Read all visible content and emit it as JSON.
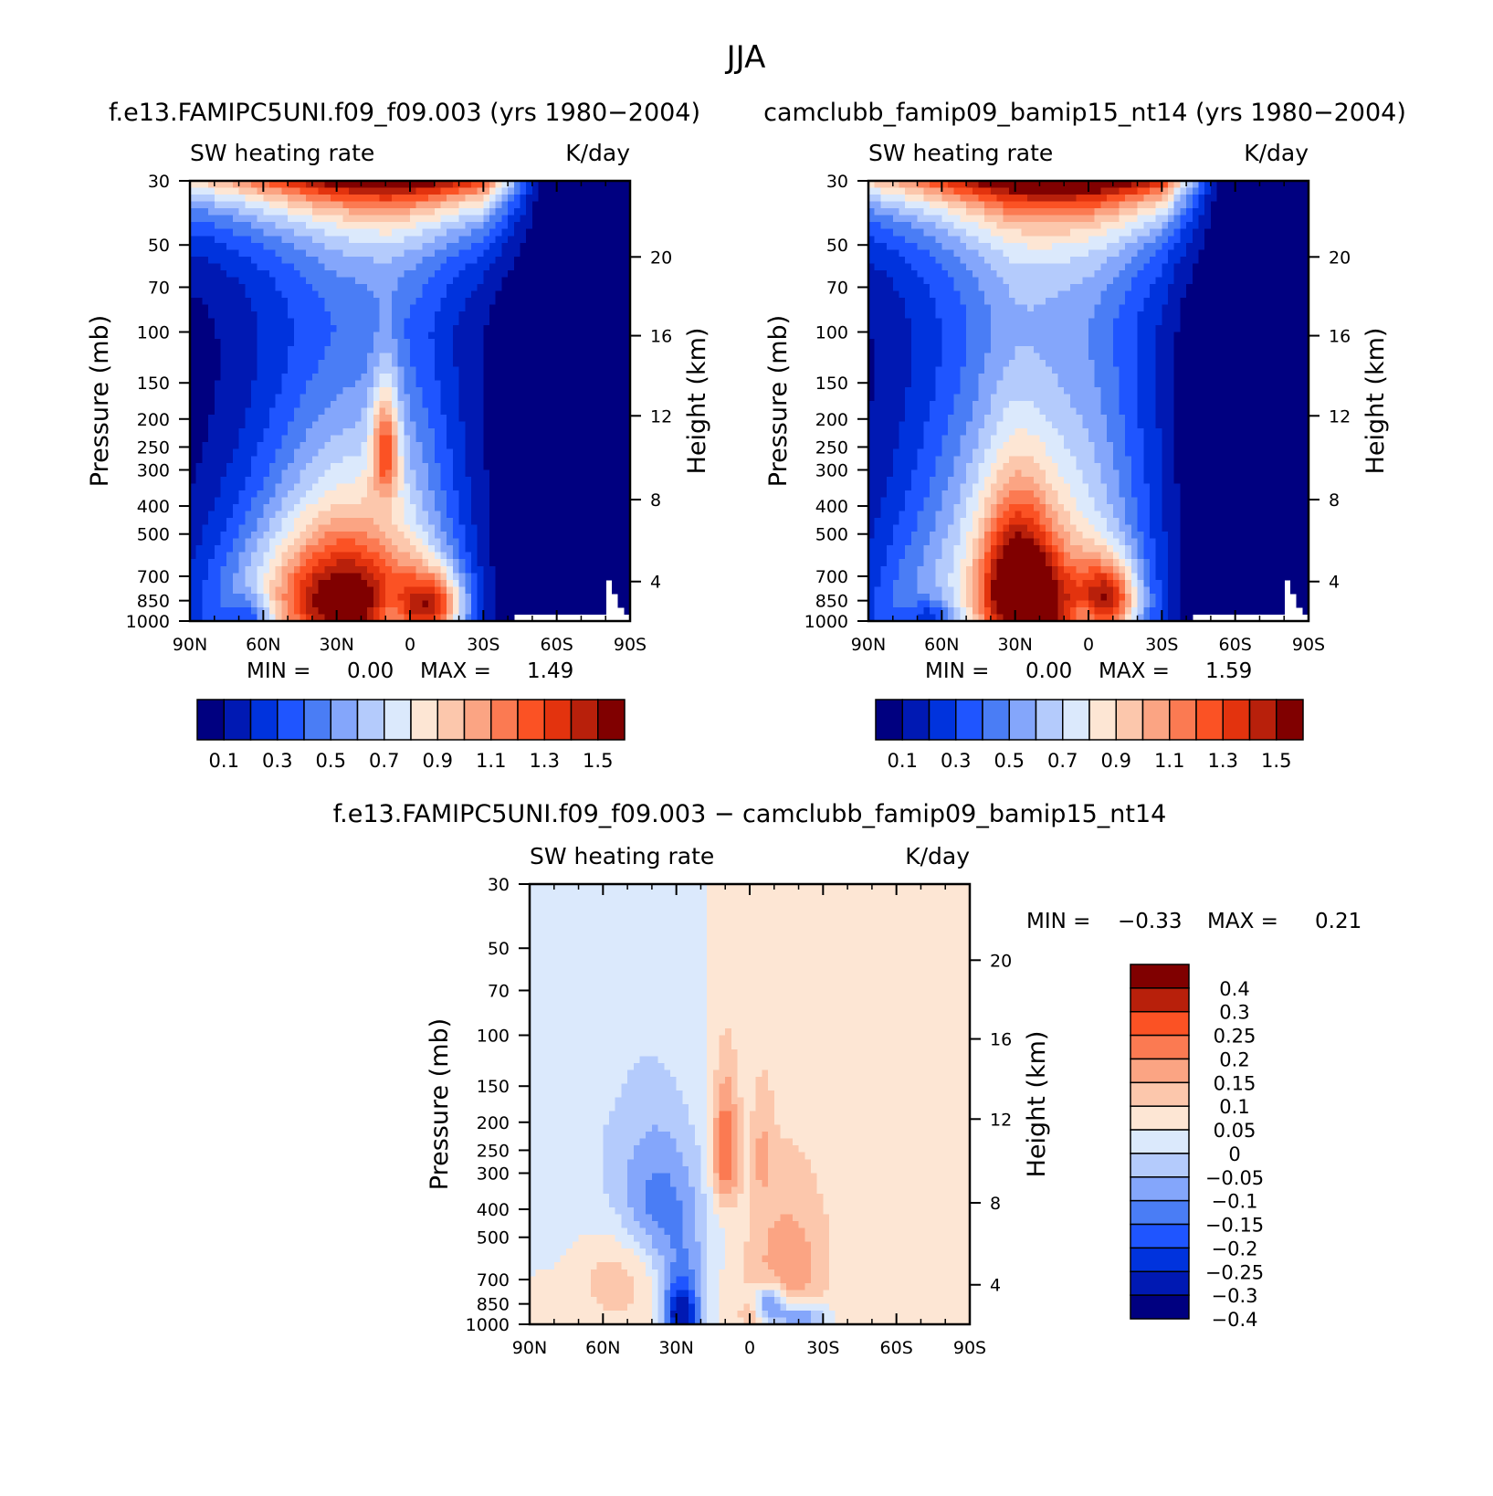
{
  "figure": {
    "title": "JJA"
  },
  "palettes": {
    "abs": [
      "#000080",
      "#0019b3",
      "#0033dd",
      "#1f55ff",
      "#4a7df5",
      "#84a6fb",
      "#b4cbfc",
      "#dbe9fc",
      "#fde6d4",
      "#fcc7ac",
      "#fba483",
      "#fb7a52",
      "#fb5224",
      "#e3330e",
      "#b8200b",
      "#800000"
    ],
    "diff": [
      "#000080",
      "#0019b3",
      "#0033dd",
      "#1f55ff",
      "#4a7df5",
      "#84a6fb",
      "#b4cbfc",
      "#dbe9fc",
      "#fde6d4",
      "#fcc7ac",
      "#fba483",
      "#fb7a52",
      "#fb5224",
      "#b8200b",
      "#800000"
    ]
  },
  "chart_data": [
    {
      "id": "panel1",
      "type": "heatmap",
      "title": "f.e13.FAMIPC5UNI.f09_f09.003 (yrs 1980−2004)",
      "left_title": "SW heating rate",
      "right_title": "K/day",
      "ylabel": "Pressure (mb)",
      "ylabel_right": "Height (km)",
      "x_ticks": [
        "90N",
        "60N",
        "30N",
        "0",
        "30S",
        "60S",
        "90S"
      ],
      "x_range": [
        90,
        -90
      ],
      "y_ticks": [
        "30",
        "50",
        "70",
        "100",
        "150",
        "200",
        "250",
        "300",
        "400",
        "500",
        "700",
        "850",
        "1000"
      ],
      "y_range_mb": [
        30,
        1000
      ],
      "y_right_ticks": [
        "20",
        "16",
        "12",
        "8",
        "4"
      ],
      "min_label": "MIN =",
      "min_value": "0.00",
      "max_label": "MAX =",
      "max_value": "1.49",
      "colorbar_labels": [
        "0.1",
        "0.3",
        "0.5",
        "0.7",
        "0.9",
        "1.1",
        "1.3",
        "1.5"
      ],
      "features": [
        {
          "lat": 30,
          "p": 880,
          "amp": 0.95,
          "wlat": 20,
          "wp": 260
        },
        {
          "lat": -10,
          "p": 870,
          "amp": 0.75,
          "wlat": 9,
          "wp": 160
        },
        {
          "lat": 10,
          "p": 250,
          "amp": 0.65,
          "wlat": 4,
          "wp": 80
        },
        {
          "lat": 35,
          "p": 500,
          "amp": 0.35,
          "wlat": 25,
          "wp": 300
        },
        {
          "lat": 70,
          "p": 900,
          "amp": 0.3,
          "wlat": 20,
          "wp": 350
        },
        {
          "lat": 65,
          "p": 950,
          "amp": -0.3,
          "wlat": 6,
          "wp": 100
        },
        {
          "lat": 8,
          "p": 950,
          "amp": -0.25,
          "wlat": 4,
          "wp": 120
        }
      ],
      "model": {
        "tropLat": 5,
        "halfWidth": 32,
        "southShift": 1.6,
        "topAmp": 1.4,
        "upperBase": 0.28,
        "lowerBase": 0.72,
        "missing": true
      }
    },
    {
      "id": "panel2",
      "type": "heatmap",
      "title": "camclubb_famip09_bamip15_nt14 (yrs 1980−2004)",
      "left_title": "SW heating rate",
      "right_title": "K/day",
      "ylabel": "Pressure (mb)",
      "ylabel_right": "Height (km)",
      "x_ticks": [
        "90N",
        "60N",
        "30N",
        "0",
        "30S",
        "60S",
        "90S"
      ],
      "x_range": [
        90,
        -90
      ],
      "y_ticks": [
        "30",
        "50",
        "70",
        "100",
        "150",
        "200",
        "250",
        "300",
        "400",
        "500",
        "700",
        "850",
        "1000"
      ],
      "y_range_mb": [
        30,
        1000
      ],
      "y_right_ticks": [
        "20",
        "16",
        "12",
        "8",
        "4"
      ],
      "min_label": "MIN =",
      "min_value": "0.00",
      "max_label": "MAX =",
      "max_value": "1.59",
      "colorbar_labels": [
        "0.1",
        "0.3",
        "0.5",
        "0.7",
        "0.9",
        "1.1",
        "1.3",
        "1.5"
      ],
      "features": [
        {
          "lat": 25,
          "p": 900,
          "amp": 1.0,
          "wlat": 14,
          "wp": 260
        },
        {
          "lat": 30,
          "p": 620,
          "amp": 0.45,
          "wlat": 10,
          "wp": 260
        },
        {
          "lat": -8,
          "p": 830,
          "amp": 0.8,
          "wlat": 9,
          "wp": 170
        },
        {
          "lat": 40,
          "p": 450,
          "amp": 0.3,
          "wlat": 28,
          "wp": 300
        },
        {
          "lat": 70,
          "p": 920,
          "amp": 0.3,
          "wlat": 20,
          "wp": 300
        },
        {
          "lat": 65,
          "p": 960,
          "amp": -0.3,
          "wlat": 6,
          "wp": 90
        },
        {
          "lat": 2,
          "p": 950,
          "amp": -0.2,
          "wlat": 4,
          "wp": 120
        }
      ],
      "model": {
        "tropLat": 5,
        "halfWidth": 38,
        "southShift": 1.6,
        "topAmp": 1.4,
        "upperBase": 0.4,
        "lowerBase": 0.72,
        "missing": true
      }
    },
    {
      "id": "panel3",
      "type": "heatmap",
      "title": "f.e13.FAMIPC5UNI.f09_f09.003 − camclubb_famip09_bamip15_nt14",
      "left_title": "SW heating rate",
      "right_title": "K/day",
      "ylabel": "Pressure (mb)",
      "ylabel_right": "Height (km)",
      "x_ticks": [
        "90N",
        "60N",
        "30N",
        "0",
        "30S",
        "60S",
        "90S"
      ],
      "x_range": [
        90,
        -90
      ],
      "y_ticks": [
        "30",
        "50",
        "70",
        "100",
        "150",
        "200",
        "250",
        "300",
        "400",
        "500",
        "700",
        "850",
        "1000"
      ],
      "y_range_mb": [
        30,
        1000
      ],
      "y_right_ticks": [
        "20",
        "16",
        "12",
        "8",
        "4"
      ],
      "min_label": "MIN =",
      "min_value": "−0.33",
      "max_label": "MAX =",
      "max_value": "0.21",
      "colorbar_labels": [
        "0.4",
        "0.3",
        "0.25",
        "0.2",
        "0.15",
        "0.1",
        "0.05",
        "0",
        "−0.05",
        "−0.1",
        "−0.15",
        "−0.2",
        "−0.25",
        "−0.3",
        "−0.4"
      ],
      "features": [
        {
          "lat": 10,
          "p": 250,
          "amp": 0.21,
          "wlat": 4,
          "wp": 90
        },
        {
          "lat": -5,
          "p": 250,
          "amp": 0.08,
          "wlat": 3,
          "wp": 80
        },
        {
          "lat": -15,
          "p": 620,
          "amp": 0.12,
          "wlat": 12,
          "wp": 260
        },
        {
          "lat": 55,
          "p": 650,
          "amp": 0.08,
          "wlat": 12,
          "wp": 200
        },
        {
          "lat": 0,
          "p": 930,
          "amp": 0.06,
          "wlat": 3,
          "wp": 60
        },
        {
          "lat": 28,
          "p": 950,
          "amp": -0.33,
          "wlat": 5,
          "wp": 160
        },
        {
          "lat": 27,
          "p": 700,
          "amp": -0.12,
          "wlat": 8,
          "wp": 200
        },
        {
          "lat": 38,
          "p": 380,
          "amp": -0.14,
          "wlat": 12,
          "wp": 150
        },
        {
          "lat": -8,
          "p": 840,
          "amp": -0.2,
          "wlat": 4,
          "wp": 80
        },
        {
          "lat": -20,
          "p": 950,
          "amp": -0.2,
          "wlat": 8,
          "wp": 80
        },
        {
          "lat": 65,
          "p": 300,
          "amp": -0.06,
          "wlat": 35,
          "wp": 250
        }
      ],
      "model": {
        "baseline": 0.015,
        "missingDiff": true
      }
    }
  ]
}
